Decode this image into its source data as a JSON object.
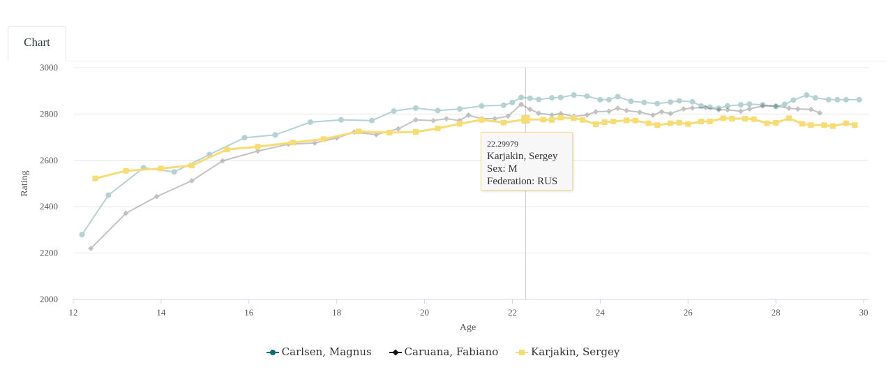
{
  "tabs": [
    {
      "label": "Chart",
      "active": true
    }
  ],
  "chart_data": {
    "type": "line",
    "xlabel": "Age",
    "ylabel": "Rating",
    "xlim": [
      12,
      30
    ],
    "ylim": [
      2000,
      3000
    ],
    "xticks": [
      "12",
      "14",
      "16",
      "18",
      "20",
      "22",
      "24",
      "26",
      "28",
      "30"
    ],
    "yticks": [
      "2000",
      "2200",
      "2400",
      "2600",
      "2800",
      "3000"
    ],
    "grid": "horizontal",
    "legend_position": "bottom",
    "crosshair_x": 22.29979,
    "series": [
      {
        "name": "Carlsen, Magnus",
        "color": "#0b6b72",
        "opacity": 0.3,
        "marker": "circle",
        "points": [
          [
            12.2,
            2280
          ],
          [
            12.8,
            2450
          ],
          [
            13.6,
            2568
          ],
          [
            14.3,
            2550
          ],
          [
            15.1,
            2625
          ],
          [
            15.9,
            2698
          ],
          [
            16.6,
            2710
          ],
          [
            17.4,
            2765
          ],
          [
            18.1,
            2775
          ],
          [
            18.8,
            2772
          ],
          [
            19.3,
            2813
          ],
          [
            19.8,
            2826
          ],
          [
            20.3,
            2815
          ],
          [
            20.8,
            2822
          ],
          [
            21.3,
            2835
          ],
          [
            21.8,
            2838
          ],
          [
            22.0,
            2850
          ],
          [
            22.2,
            2872
          ],
          [
            22.4,
            2868
          ],
          [
            22.6,
            2863
          ],
          [
            22.9,
            2870
          ],
          [
            23.1,
            2872
          ],
          [
            23.4,
            2882
          ],
          [
            23.7,
            2877
          ],
          [
            24.0,
            2862
          ],
          [
            24.2,
            2862
          ],
          [
            24.4,
            2875
          ],
          [
            24.7,
            2855
          ],
          [
            25.0,
            2850
          ],
          [
            25.3,
            2845
          ],
          [
            25.6,
            2852
          ],
          [
            25.8,
            2857
          ],
          [
            26.1,
            2853
          ],
          [
            26.3,
            2835
          ],
          [
            26.5,
            2830
          ],
          [
            26.7,
            2825
          ],
          [
            26.9,
            2835
          ],
          [
            27.2,
            2840
          ],
          [
            27.4,
            2843
          ],
          [
            27.7,
            2840
          ],
          [
            28.0,
            2832
          ],
          [
            28.2,
            2842
          ],
          [
            28.4,
            2860
          ],
          [
            28.7,
            2882
          ],
          [
            28.9,
            2870
          ],
          [
            29.2,
            2862
          ],
          [
            29.4,
            2862
          ],
          [
            29.6,
            2862
          ],
          [
            29.9,
            2862
          ]
        ]
      },
      {
        "name": "Caruana, Fabiano",
        "color": "#111111",
        "opacity": 0.25,
        "marker": "diamond",
        "points": [
          [
            12.4,
            2220
          ],
          [
            13.2,
            2372
          ],
          [
            13.9,
            2444
          ],
          [
            14.7,
            2512
          ],
          [
            15.4,
            2598
          ],
          [
            16.2,
            2640
          ],
          [
            16.9,
            2670
          ],
          [
            17.5,
            2675
          ],
          [
            18.0,
            2697
          ],
          [
            18.4,
            2722
          ],
          [
            18.9,
            2711
          ],
          [
            19.4,
            2736
          ],
          [
            19.8,
            2775
          ],
          [
            20.2,
            2772
          ],
          [
            20.5,
            2780
          ],
          [
            20.8,
            2772
          ],
          [
            21.0,
            2795
          ],
          [
            21.3,
            2780
          ],
          [
            21.6,
            2780
          ],
          [
            21.9,
            2791
          ],
          [
            22.2,
            2842
          ],
          [
            22.4,
            2820
          ],
          [
            22.6,
            2804
          ],
          [
            22.9,
            2796
          ],
          [
            23.1,
            2802
          ],
          [
            23.4,
            2790
          ],
          [
            23.7,
            2796
          ],
          [
            23.9,
            2810
          ],
          [
            24.2,
            2812
          ],
          [
            24.4,
            2825
          ],
          [
            24.6,
            2815
          ],
          [
            24.9,
            2808
          ],
          [
            25.2,
            2795
          ],
          [
            25.4,
            2810
          ],
          [
            25.6,
            2802
          ],
          [
            25.9,
            2822
          ],
          [
            26.1,
            2826
          ],
          [
            26.4,
            2828
          ],
          [
            26.7,
            2818
          ],
          [
            26.9,
            2818
          ],
          [
            27.2,
            2812
          ],
          [
            27.4,
            2822
          ],
          [
            27.7,
            2835
          ],
          [
            28.0,
            2835
          ],
          [
            28.3,
            2825
          ],
          [
            28.5,
            2822
          ],
          [
            28.8,
            2820
          ],
          [
            29.0,
            2805
          ]
        ]
      },
      {
        "name": "Karjakin, Sergey",
        "color": "#f7dc74",
        "opacity": 1,
        "marker": "square",
        "points": [
          [
            12.5,
            2522
          ],
          [
            13.2,
            2555
          ],
          [
            14.0,
            2565
          ],
          [
            14.7,
            2578
          ],
          [
            15.5,
            2647
          ],
          [
            16.2,
            2659
          ],
          [
            17.0,
            2677
          ],
          [
            17.7,
            2692
          ],
          [
            18.5,
            2725
          ],
          [
            19.2,
            2720
          ],
          [
            19.8,
            2723
          ],
          [
            20.3,
            2738
          ],
          [
            20.8,
            2758
          ],
          [
            21.3,
            2775
          ],
          [
            21.8,
            2763
          ],
          [
            22.3,
            2777
          ],
          [
            22.7,
            2776
          ],
          [
            22.9,
            2775
          ],
          [
            23.1,
            2785
          ],
          [
            23.4,
            2782
          ],
          [
            23.6,
            2775
          ],
          [
            23.9,
            2756
          ],
          [
            24.1,
            2765
          ],
          [
            24.3,
            2768
          ],
          [
            24.6,
            2773
          ],
          [
            24.8,
            2772
          ],
          [
            25.1,
            2760
          ],
          [
            25.3,
            2752
          ],
          [
            25.6,
            2760
          ],
          [
            25.8,
            2763
          ],
          [
            26.0,
            2757
          ],
          [
            26.3,
            2768
          ],
          [
            26.5,
            2768
          ],
          [
            26.8,
            2782
          ],
          [
            27.0,
            2780
          ],
          [
            27.3,
            2780
          ],
          [
            27.5,
            2778
          ],
          [
            27.8,
            2760
          ],
          [
            28.0,
            2762
          ],
          [
            28.3,
            2782
          ],
          [
            28.6,
            2758
          ],
          [
            28.8,
            2752
          ],
          [
            29.1,
            2752
          ],
          [
            29.3,
            2748
          ],
          [
            29.6,
            2760
          ],
          [
            29.8,
            2752
          ]
        ]
      }
    ]
  },
  "tooltip": {
    "x": "22.29979",
    "name": "Karjakin, Sergey",
    "sex": "Sex: M",
    "federation": "Federation: RUS"
  }
}
